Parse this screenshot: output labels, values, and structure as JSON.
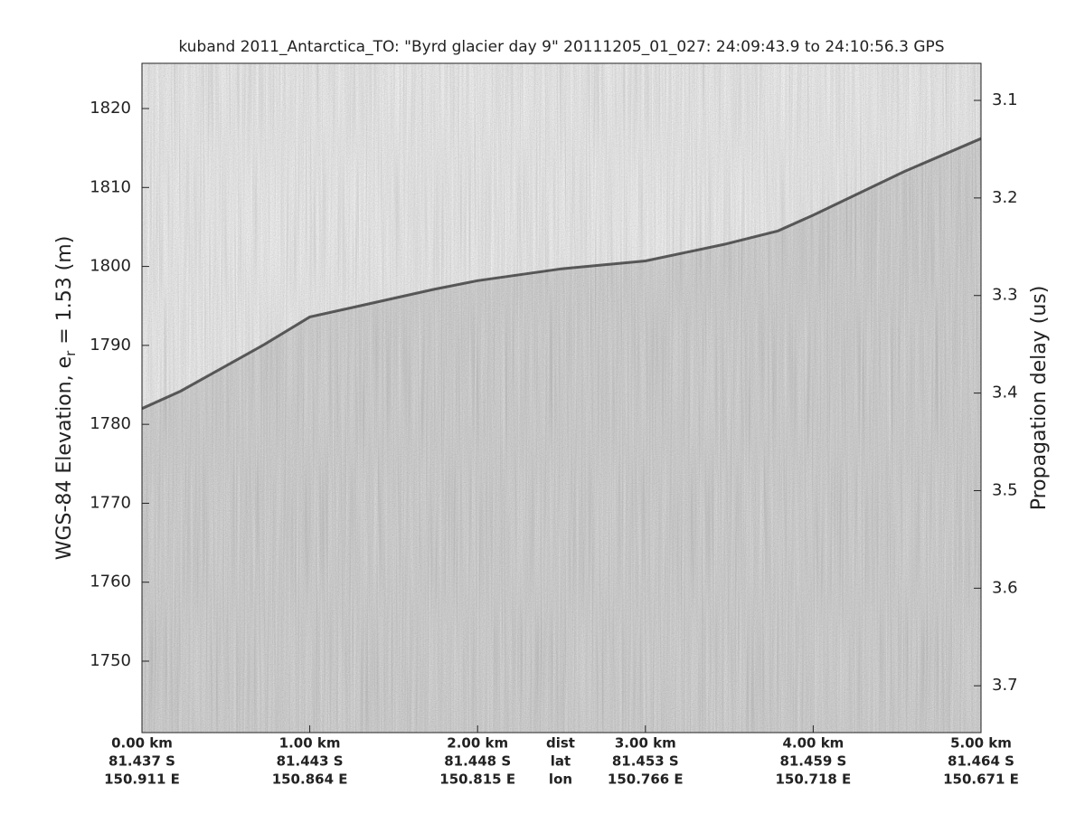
{
  "chart_data": {
    "type": "line",
    "title": "kuband 2011_Antarctica_TO: \"Byrd glacier day 9\"  20111205_01_027: 24:09:43.9 to 24:10:56.3 GPS",
    "ylabel": {
      "text": "WGS-84 Elevation, e",
      "subscript": "r",
      "rest": " = 1.53 (m)"
    },
    "y2label": "Propagation delay (us)",
    "x": [
      0,
      0.23,
      0.72,
      1.0,
      1.74,
      2.0,
      2.5,
      3.0,
      3.47,
      3.79,
      4.0,
      4.54,
      5.0
    ],
    "values": [
      1782,
      1784.2,
      1790,
      1793.6,
      1797.1,
      1798.2,
      1799.7,
      1800.7,
      1802.8,
      1804.5,
      1806.5,
      1812,
      1816.2
    ],
    "color": "#2e2e2e",
    "xlim": [
      0,
      5
    ],
    "xticks": [
      {
        "value": 0,
        "label": "0.00 km"
      },
      {
        "value": 1,
        "label": "1.00 km"
      },
      {
        "value": 2,
        "label": "2.00 km"
      },
      {
        "value": 3,
        "label": "3.00 km"
      },
      {
        "value": 4,
        "label": "4.00 km"
      },
      {
        "value": 5,
        "label": "5.00 km"
      }
    ],
    "lat_labels": [
      "81.437 S",
      "81.443 S",
      "81.448 S",
      "81.453 S",
      "81.459 S",
      "81.464 S"
    ],
    "lon_labels": [
      "150.911 E",
      "150.864 E",
      "150.815 E",
      "150.766 E",
      "150.718 E",
      "150.671 E"
    ],
    "row_labels": [
      "dist",
      "lat",
      "lon"
    ],
    "ylim": [
      1740.95,
      1825.73
    ],
    "yticks": [
      1750,
      1760,
      1770,
      1780,
      1790,
      1800,
      1810,
      1820
    ],
    "y2lim": [
      3.748,
      3.062
    ],
    "y2ticks": [
      3.1,
      3.2,
      3.3,
      3.4,
      3.5,
      3.6,
      3.7
    ]
  }
}
